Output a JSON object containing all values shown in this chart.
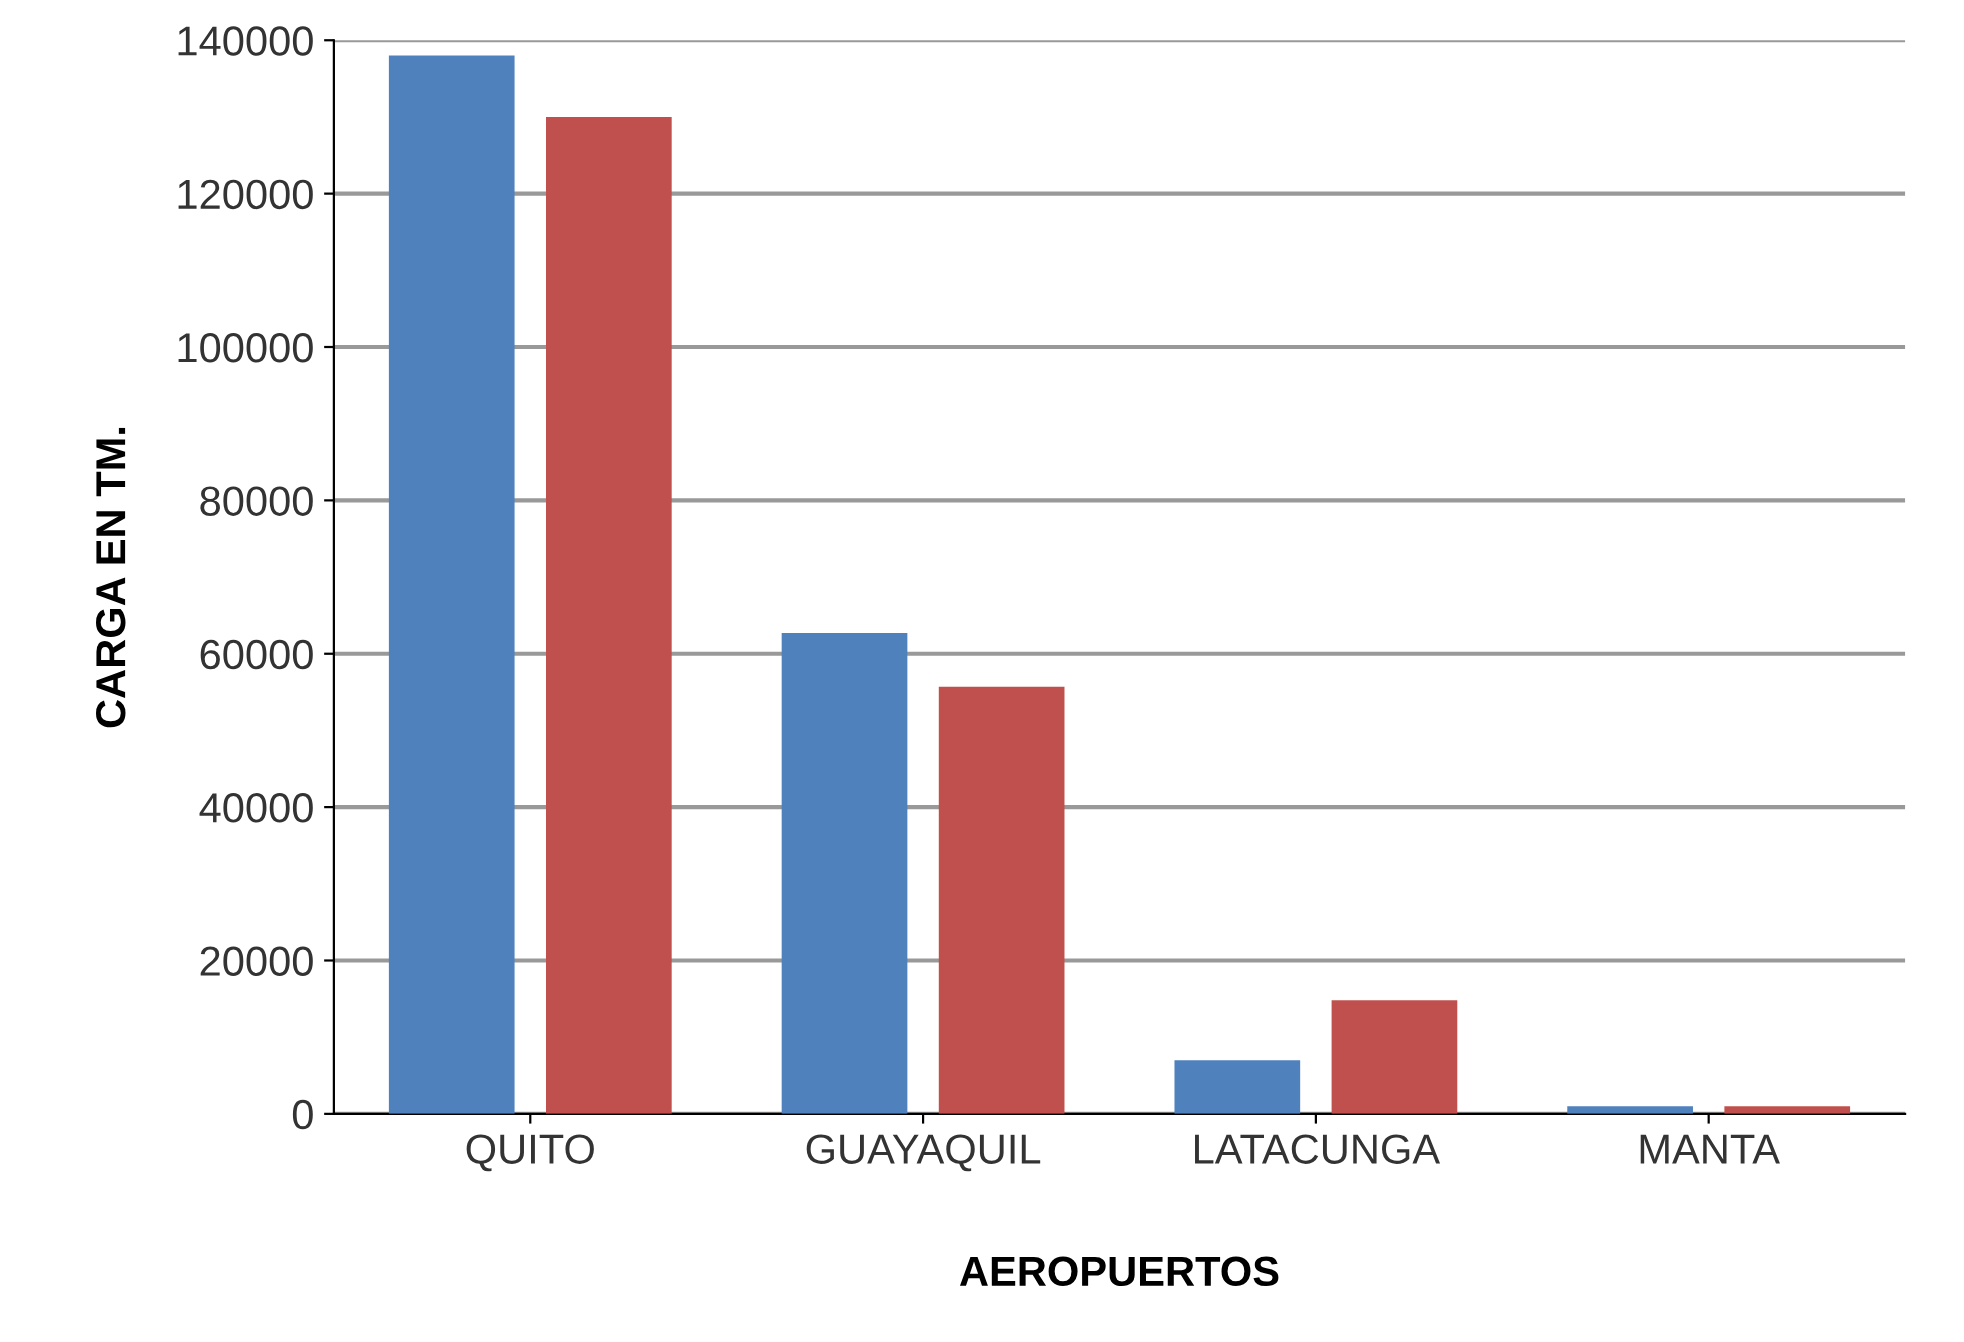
{
  "chart_data": {
    "type": "bar",
    "xlabel": "AEROPUERTOS",
    "ylabel": "CARGA EN TM.",
    "categories": [
      "QUITO",
      "GUAYAQUIL",
      "LATACUNGA",
      "MANTA"
    ],
    "series": [
      {
        "color": "#4f81bd",
        "values": [
          138000,
          62700,
          7000,
          1000
        ]
      },
      {
        "color": "#c0504d",
        "values": [
          130000,
          55700,
          14800,
          1000
        ]
      }
    ],
    "ylim": [
      0,
      140000
    ],
    "yticks": [
      0,
      20000,
      40000,
      60000,
      80000,
      100000,
      120000,
      140000
    ],
    "grid": "y"
  }
}
